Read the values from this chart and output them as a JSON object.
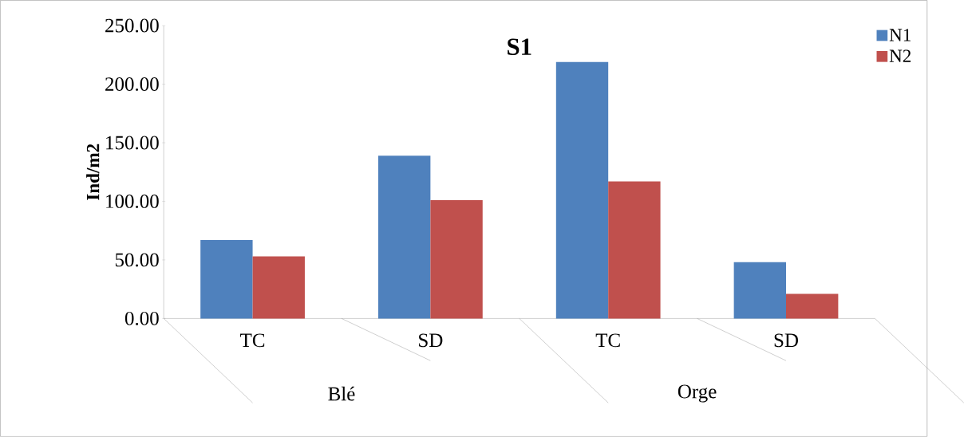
{
  "chart_data": {
    "type": "bar",
    "title": "S1",
    "ylabel": "Ind/m2",
    "categories": [
      "TC",
      "SD",
      "TC",
      "SD"
    ],
    "series": [
      {
        "name": "N1",
        "color": "#4f81bd",
        "values": [
          67,
          139,
          219,
          48
        ]
      },
      {
        "name": "N2",
        "color": "#c0504d",
        "values": [
          53,
          101,
          117,
          21
        ]
      }
    ],
    "ylim": [
      0,
      250
    ],
    "yticks": [
      {
        "value": 0,
        "label": "0.00"
      },
      {
        "value": 50,
        "label": "50.00"
      },
      {
        "value": 100,
        "label": "100.00"
      },
      {
        "value": 150,
        "label": "150.00"
      },
      {
        "value": 200,
        "label": "200.00"
      },
      {
        "value": 250,
        "label": "250.00"
      }
    ],
    "legend": "top right",
    "annotations": [
      "Blé",
      "Orge"
    ]
  }
}
